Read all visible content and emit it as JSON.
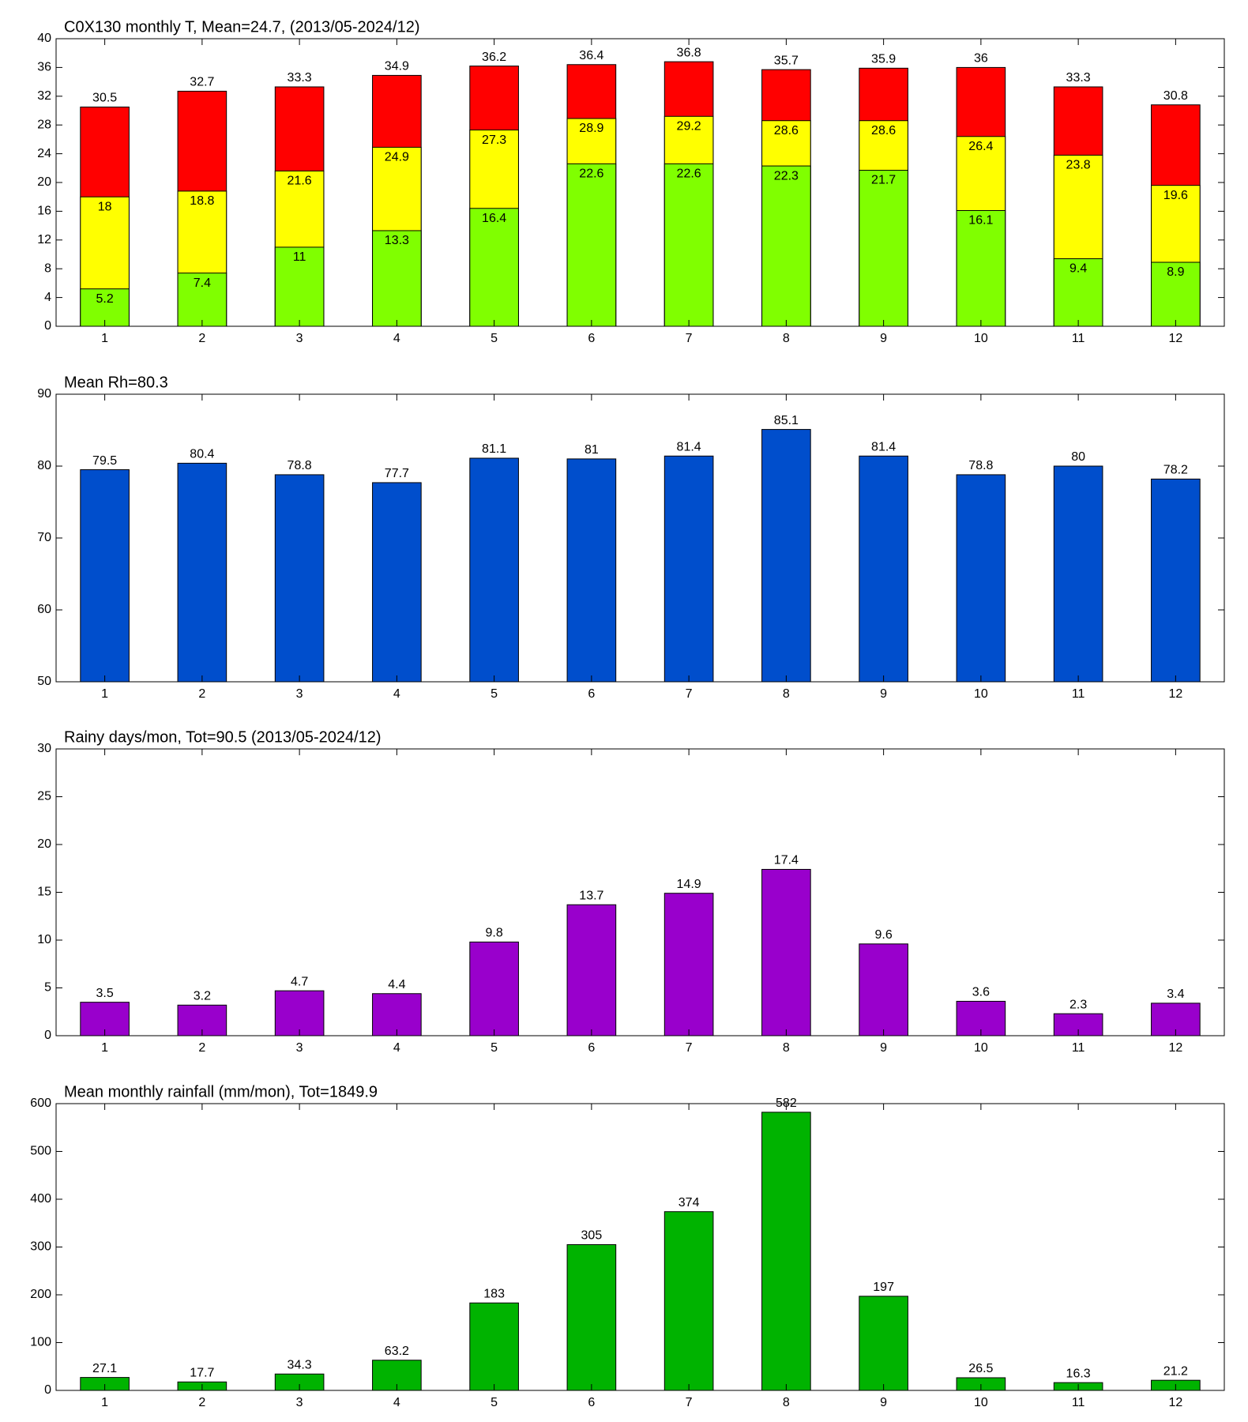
{
  "chart_data": [
    {
      "type": "bar",
      "title": "C0X130 monthly T, Mean=24.7, (2013/05-2024/12)",
      "categories": [
        "1",
        "2",
        "3",
        "4",
        "5",
        "6",
        "7",
        "8",
        "9",
        "10",
        "11",
        "12"
      ],
      "series": [
        {
          "color": "#ff0000",
          "values": [
            30.5,
            32.7,
            33.3,
            34.9,
            36.2,
            36.4,
            36.8,
            35.7,
            35.9,
            36,
            33.3,
            30.8
          ]
        },
        {
          "color": "#ffff00",
          "values": [
            18,
            18.8,
            21.6,
            24.9,
            27.3,
            28.9,
            29.2,
            28.6,
            28.6,
            26.4,
            23.8,
            19.6
          ]
        },
        {
          "color": "#80ff00",
          "values": [
            5.2,
            7.4,
            11,
            13.3,
            16.4,
            22.6,
            22.6,
            22.3,
            21.7,
            16.1,
            9.4,
            8.9
          ]
        }
      ],
      "ylim": [
        0,
        40
      ],
      "yticks": [
        0,
        4,
        8,
        12,
        16,
        20,
        24,
        28,
        32,
        36,
        40
      ]
    },
    {
      "type": "bar",
      "title": "Mean Rh=80.3",
      "categories": [
        "1",
        "2",
        "3",
        "4",
        "5",
        "6",
        "7",
        "8",
        "9",
        "10",
        "11",
        "12"
      ],
      "series": [
        {
          "color": "#004ecc",
          "values": [
            79.5,
            80.4,
            78.8,
            77.7,
            81.1,
            81,
            81.4,
            85.1,
            81.4,
            78.8,
            80,
            78.2
          ]
        }
      ],
      "ylim": [
        50,
        90
      ],
      "yticks": [
        50,
        60,
        70,
        80,
        90
      ]
    },
    {
      "type": "bar",
      "title": "Rainy days/mon, Tot=90.5 (2013/05-2024/12)",
      "categories": [
        "1",
        "2",
        "3",
        "4",
        "5",
        "6",
        "7",
        "8",
        "9",
        "10",
        "11",
        "12"
      ],
      "series": [
        {
          "color": "#9900cc",
          "values": [
            3.5,
            3.2,
            4.7,
            4.4,
            9.8,
            13.7,
            14.9,
            17.4,
            9.6,
            3.6,
            2.3,
            3.4
          ]
        }
      ],
      "ylim": [
        0,
        30
      ],
      "yticks": [
        0,
        5,
        10,
        15,
        20,
        25,
        30
      ]
    },
    {
      "type": "bar",
      "title": "Mean monthly rainfall (mm/mon), Tot=1849.9",
      "categories": [
        "1",
        "2",
        "3",
        "4",
        "5",
        "6",
        "7",
        "8",
        "9",
        "10",
        "11",
        "12"
      ],
      "series": [
        {
          "color": "#00b300",
          "values": [
            27.1,
            17.7,
            34.3,
            63.2,
            183,
            305,
            374,
            582,
            197,
            26.5,
            16.3,
            21.2
          ]
        }
      ],
      "ylim": [
        0,
        600
      ],
      "yticks": [
        0,
        100,
        200,
        300,
        400,
        500,
        600
      ]
    }
  ]
}
